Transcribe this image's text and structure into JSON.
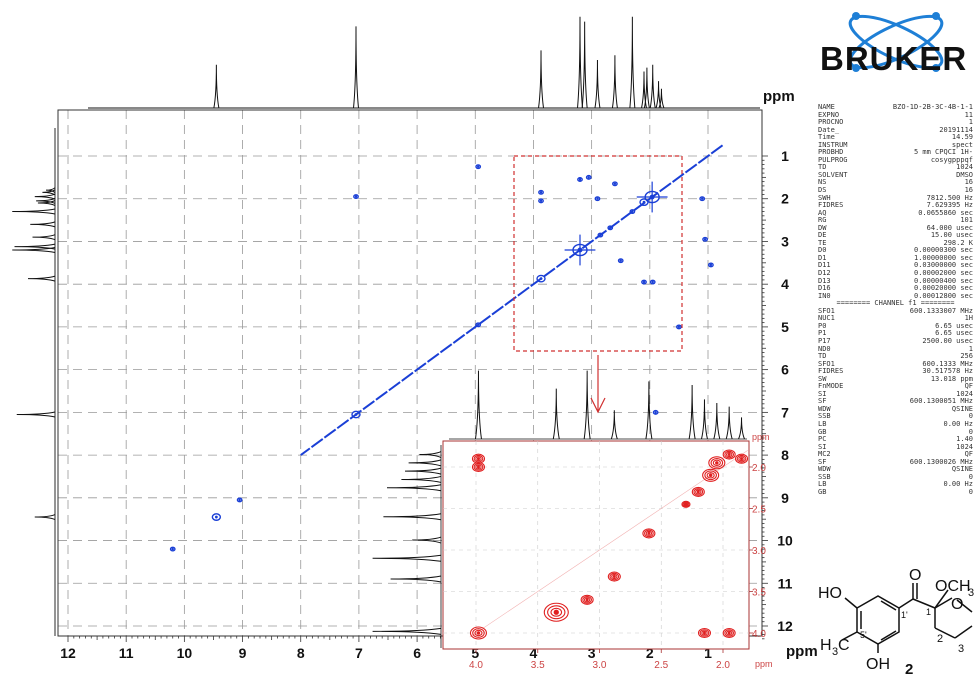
{
  "brand": {
    "name": "BRUKER",
    "color": "#1e7fd6",
    "text_color": "#111111"
  },
  "params": [
    [
      "NAME",
      "BZO-1D-2B-3C-4B-1-1"
    ],
    [
      "EXPNO",
      "11"
    ],
    [
      "PROCNO",
      "1"
    ],
    [
      "Date_",
      "20191114"
    ],
    [
      "Time",
      "14.59"
    ],
    [
      "INSTRUM",
      "spect"
    ],
    [
      "PROBHD",
      "5 mm CPQCI 1H-"
    ],
    [
      "PULPROG",
      "cosygpppqf"
    ],
    [
      "TD",
      "1024"
    ],
    [
      "SOLVENT",
      "DMSO"
    ],
    [
      "NS",
      "16"
    ],
    [
      "DS",
      "16"
    ],
    [
      "SWH",
      "7812.500 Hz"
    ],
    [
      "FIDRES",
      "7.629395 Hz"
    ],
    [
      "AQ",
      "0.0655860 sec"
    ],
    [
      "RG",
      "101"
    ],
    [
      "DW",
      "64.000 usec"
    ],
    [
      "DE",
      "15.00 usec"
    ],
    [
      "TE",
      "298.2 K"
    ],
    [
      "D0",
      "0.00000300 sec"
    ],
    [
      "D1",
      "1.00000000 sec"
    ],
    [
      "D11",
      "0.03000000 sec"
    ],
    [
      "D12",
      "0.00002000 sec"
    ],
    [
      "D13",
      "0.00000400 sec"
    ],
    [
      "D16",
      "0.00020000 sec"
    ],
    [
      "IN0",
      "0.00012800 sec"
    ]
  ],
  "channel_divider": "======== CHANNEL f1 ========",
  "params2": [
    [
      "SFO1",
      "600.1333007 MHz"
    ],
    [
      "NUC1",
      "1H"
    ],
    [
      "P0",
      "6.65 usec"
    ],
    [
      "P1",
      "6.65 usec"
    ],
    [
      "P17",
      "2500.00 usec"
    ],
    [
      "ND0",
      "1"
    ],
    [
      "TD",
      "256"
    ],
    [
      "SFO1",
      "600.1333 MHz"
    ],
    [
      "FIDRES",
      "30.517578 Hz"
    ],
    [
      "SW",
      "13.018 ppm"
    ],
    [
      "FnMODE",
      "QF"
    ],
    [
      "SI",
      "1024"
    ],
    [
      "SF",
      "600.1300051 MHz"
    ],
    [
      "WDW",
      "QSINE"
    ],
    [
      "SSB",
      "0"
    ],
    [
      "LB",
      "0.00 Hz"
    ],
    [
      "GB",
      "0"
    ],
    [
      "PC",
      "1.40"
    ],
    [
      "SI",
      "1024"
    ],
    [
      "MC2",
      "QF"
    ],
    [
      "SF",
      "600.1300026 MHz"
    ],
    [
      "WDW",
      "QSINE"
    ],
    [
      "SSB",
      "0"
    ],
    [
      "LB",
      "0.00 Hz"
    ],
    [
      "GB",
      "0"
    ]
  ],
  "structure": {
    "label_ho_top": "HO",
    "label_ome": "OCH",
    "label_ome_sub": "3",
    "label_h3c": "H",
    "label_h3c_sub": "3",
    "label_h3c_c": "C",
    "label_oh": "OH",
    "label_o_ring": "O",
    "label_o_carbonyl": "O",
    "locant_1p": "1'",
    "locant_1": "1",
    "locant_2": "2",
    "locant_3": "3",
    "locant_5p": "5'",
    "compound_number": "2"
  },
  "chart_data": [
    {
      "type": "scatter",
      "name": "main_cosy",
      "xlabel": "ppm",
      "ylabel": "ppm",
      "xlim": [
        12,
        0.5
      ],
      "ylim": [
        0.3,
        12
      ],
      "x_ticks": [
        12,
        11,
        10,
        9,
        8,
        7,
        6,
        5,
        4,
        3,
        2,
        1
      ],
      "x_tick_labels": [
        "12",
        "11",
        "10",
        "9",
        "8",
        "7",
        "6",
        "5",
        "4",
        "3",
        "2",
        "1"
      ],
      "y_ticks": [
        1,
        2,
        3,
        4,
        5,
        6,
        7,
        8,
        9,
        10,
        11,
        12
      ],
      "y_tick_labels": [
        "1",
        "2",
        "3",
        "4",
        "5",
        "6",
        "7",
        "8",
        "9",
        "10",
        "11",
        "12"
      ],
      "grid": true,
      "color": "#1a3fd6",
      "diagonal_range": [
        0.75,
        8.0
      ],
      "peaks": [
        {
          "x": 1.96,
          "y": 1.96,
          "size": 3
        },
        {
          "x": 2.1,
          "y": 2.08,
          "size": 2
        },
        {
          "x": 2.3,
          "y": 2.3,
          "size": 1
        },
        {
          "x": 2.68,
          "y": 2.68,
          "size": 1
        },
        {
          "x": 2.85,
          "y": 2.85,
          "size": 1
        },
        {
          "x": 3.2,
          "y": 3.2,
          "size": 3
        },
        {
          "x": 3.87,
          "y": 3.87,
          "size": 2
        },
        {
          "x": 4.95,
          "y": 4.95,
          "size": 1
        },
        {
          "x": 7.05,
          "y": 7.05,
          "size": 2
        },
        {
          "x": 9.45,
          "y": 9.45,
          "size": 2
        },
        {
          "x": 3.87,
          "y": 1.85,
          "size": 1
        },
        {
          "x": 3.87,
          "y": 2.05,
          "size": 1
        },
        {
          "x": 1.95,
          "y": 3.95,
          "size": 1
        },
        {
          "x": 2.1,
          "y": 3.95,
          "size": 1
        },
        {
          "x": 2.9,
          "y": 2.0,
          "size": 1
        },
        {
          "x": 1.1,
          "y": 2.0,
          "size": 1
        },
        {
          "x": 4.95,
          "y": 1.25,
          "size": 1
        },
        {
          "x": 7.05,
          "y": 1.95,
          "size": 1
        },
        {
          "x": 3.2,
          "y": 1.55,
          "size": 1
        },
        {
          "x": 2.6,
          "y": 1.65,
          "size": 1
        },
        {
          "x": 3.05,
          "y": 1.5,
          "size": 1
        },
        {
          "x": 1.05,
          "y": 2.95,
          "size": 1
        },
        {
          "x": 2.5,
          "y": 3.45,
          "size": 1
        },
        {
          "x": 9.05,
          "y": 9.05,
          "size": 1
        },
        {
          "x": 10.2,
          "y": 10.2,
          "size": 1
        },
        {
          "x": 1.9,
          "y": 7.0,
          "size": 1
        },
        {
          "x": 1.5,
          "y": 5.0,
          "size": 1
        },
        {
          "x": 0.95,
          "y": 3.55,
          "size": 1
        }
      ],
      "top_1d_peaks": [
        {
          "x": 9.45,
          "h": 0.45
        },
        {
          "x": 7.05,
          "h": 0.85
        },
        {
          "x": 3.87,
          "h": 0.6
        },
        {
          "x": 3.2,
          "h": 0.95
        },
        {
          "x": 3.12,
          "h": 0.9
        },
        {
          "x": 2.9,
          "h": 0.5
        },
        {
          "x": 2.6,
          "h": 0.55
        },
        {
          "x": 2.3,
          "h": 0.95
        },
        {
          "x": 2.1,
          "h": 0.38
        },
        {
          "x": 2.05,
          "h": 0.42
        },
        {
          "x": 1.95,
          "h": 0.45
        },
        {
          "x": 1.85,
          "h": 0.28
        },
        {
          "x": 1.8,
          "h": 0.2
        }
      ]
    },
    {
      "type": "scatter",
      "name": "inset_cosy",
      "xlabel": "ppm",
      "ylabel": "ppm",
      "xlim": [
        4.15,
        1.75
      ],
      "ylim": [
        1.8,
        4.1
      ],
      "x_ticks": [
        4.0,
        3.5,
        3.0,
        2.5,
        2.0
      ],
      "x_tick_labels": [
        "4.0",
        "3.5",
        "3.0",
        "2.5",
        "2.0"
      ],
      "y_ticks": [
        2.0,
        2.5,
        3.0,
        3.5,
        4.0
      ],
      "y_tick_labels": [
        "2.0",
        "2.5",
        "3.0",
        "3.5",
        "4.0"
      ],
      "color": "#e02020",
      "peaks": [
        {
          "x": 3.98,
          "y": 1.9,
          "size": 2
        },
        {
          "x": 3.98,
          "y": 2.0,
          "size": 2
        },
        {
          "x": 3.98,
          "y": 4.0,
          "size": 3
        },
        {
          "x": 3.35,
          "y": 3.75,
          "size": 4
        },
        {
          "x": 3.1,
          "y": 3.6,
          "size": 2
        },
        {
          "x": 2.88,
          "y": 3.32,
          "size": 2
        },
        {
          "x": 2.6,
          "y": 2.8,
          "size": 2
        },
        {
          "x": 2.3,
          "y": 2.45,
          "size": 1
        },
        {
          "x": 2.2,
          "y": 2.3,
          "size": 2
        },
        {
          "x": 2.1,
          "y": 2.1,
          "size": 3
        },
        {
          "x": 2.05,
          "y": 1.95,
          "size": 3
        },
        {
          "x": 1.95,
          "y": 1.85,
          "size": 2
        },
        {
          "x": 1.85,
          "y": 1.9,
          "size": 2
        },
        {
          "x": 2.15,
          "y": 4.0,
          "size": 2
        },
        {
          "x": 1.95,
          "y": 4.0,
          "size": 2
        }
      ],
      "top_1d_peaks": [
        {
          "x": 3.98,
          "h": 0.95
        },
        {
          "x": 3.35,
          "h": 0.7
        },
        {
          "x": 3.1,
          "h": 0.95
        },
        {
          "x": 2.88,
          "h": 0.4
        },
        {
          "x": 2.6,
          "h": 0.8
        },
        {
          "x": 2.25,
          "h": 0.75
        },
        {
          "x": 2.15,
          "h": 0.55
        },
        {
          "x": 2.05,
          "h": 0.5
        },
        {
          "x": 1.95,
          "h": 0.45
        },
        {
          "x": 1.85,
          "h": 0.3
        }
      ]
    }
  ]
}
